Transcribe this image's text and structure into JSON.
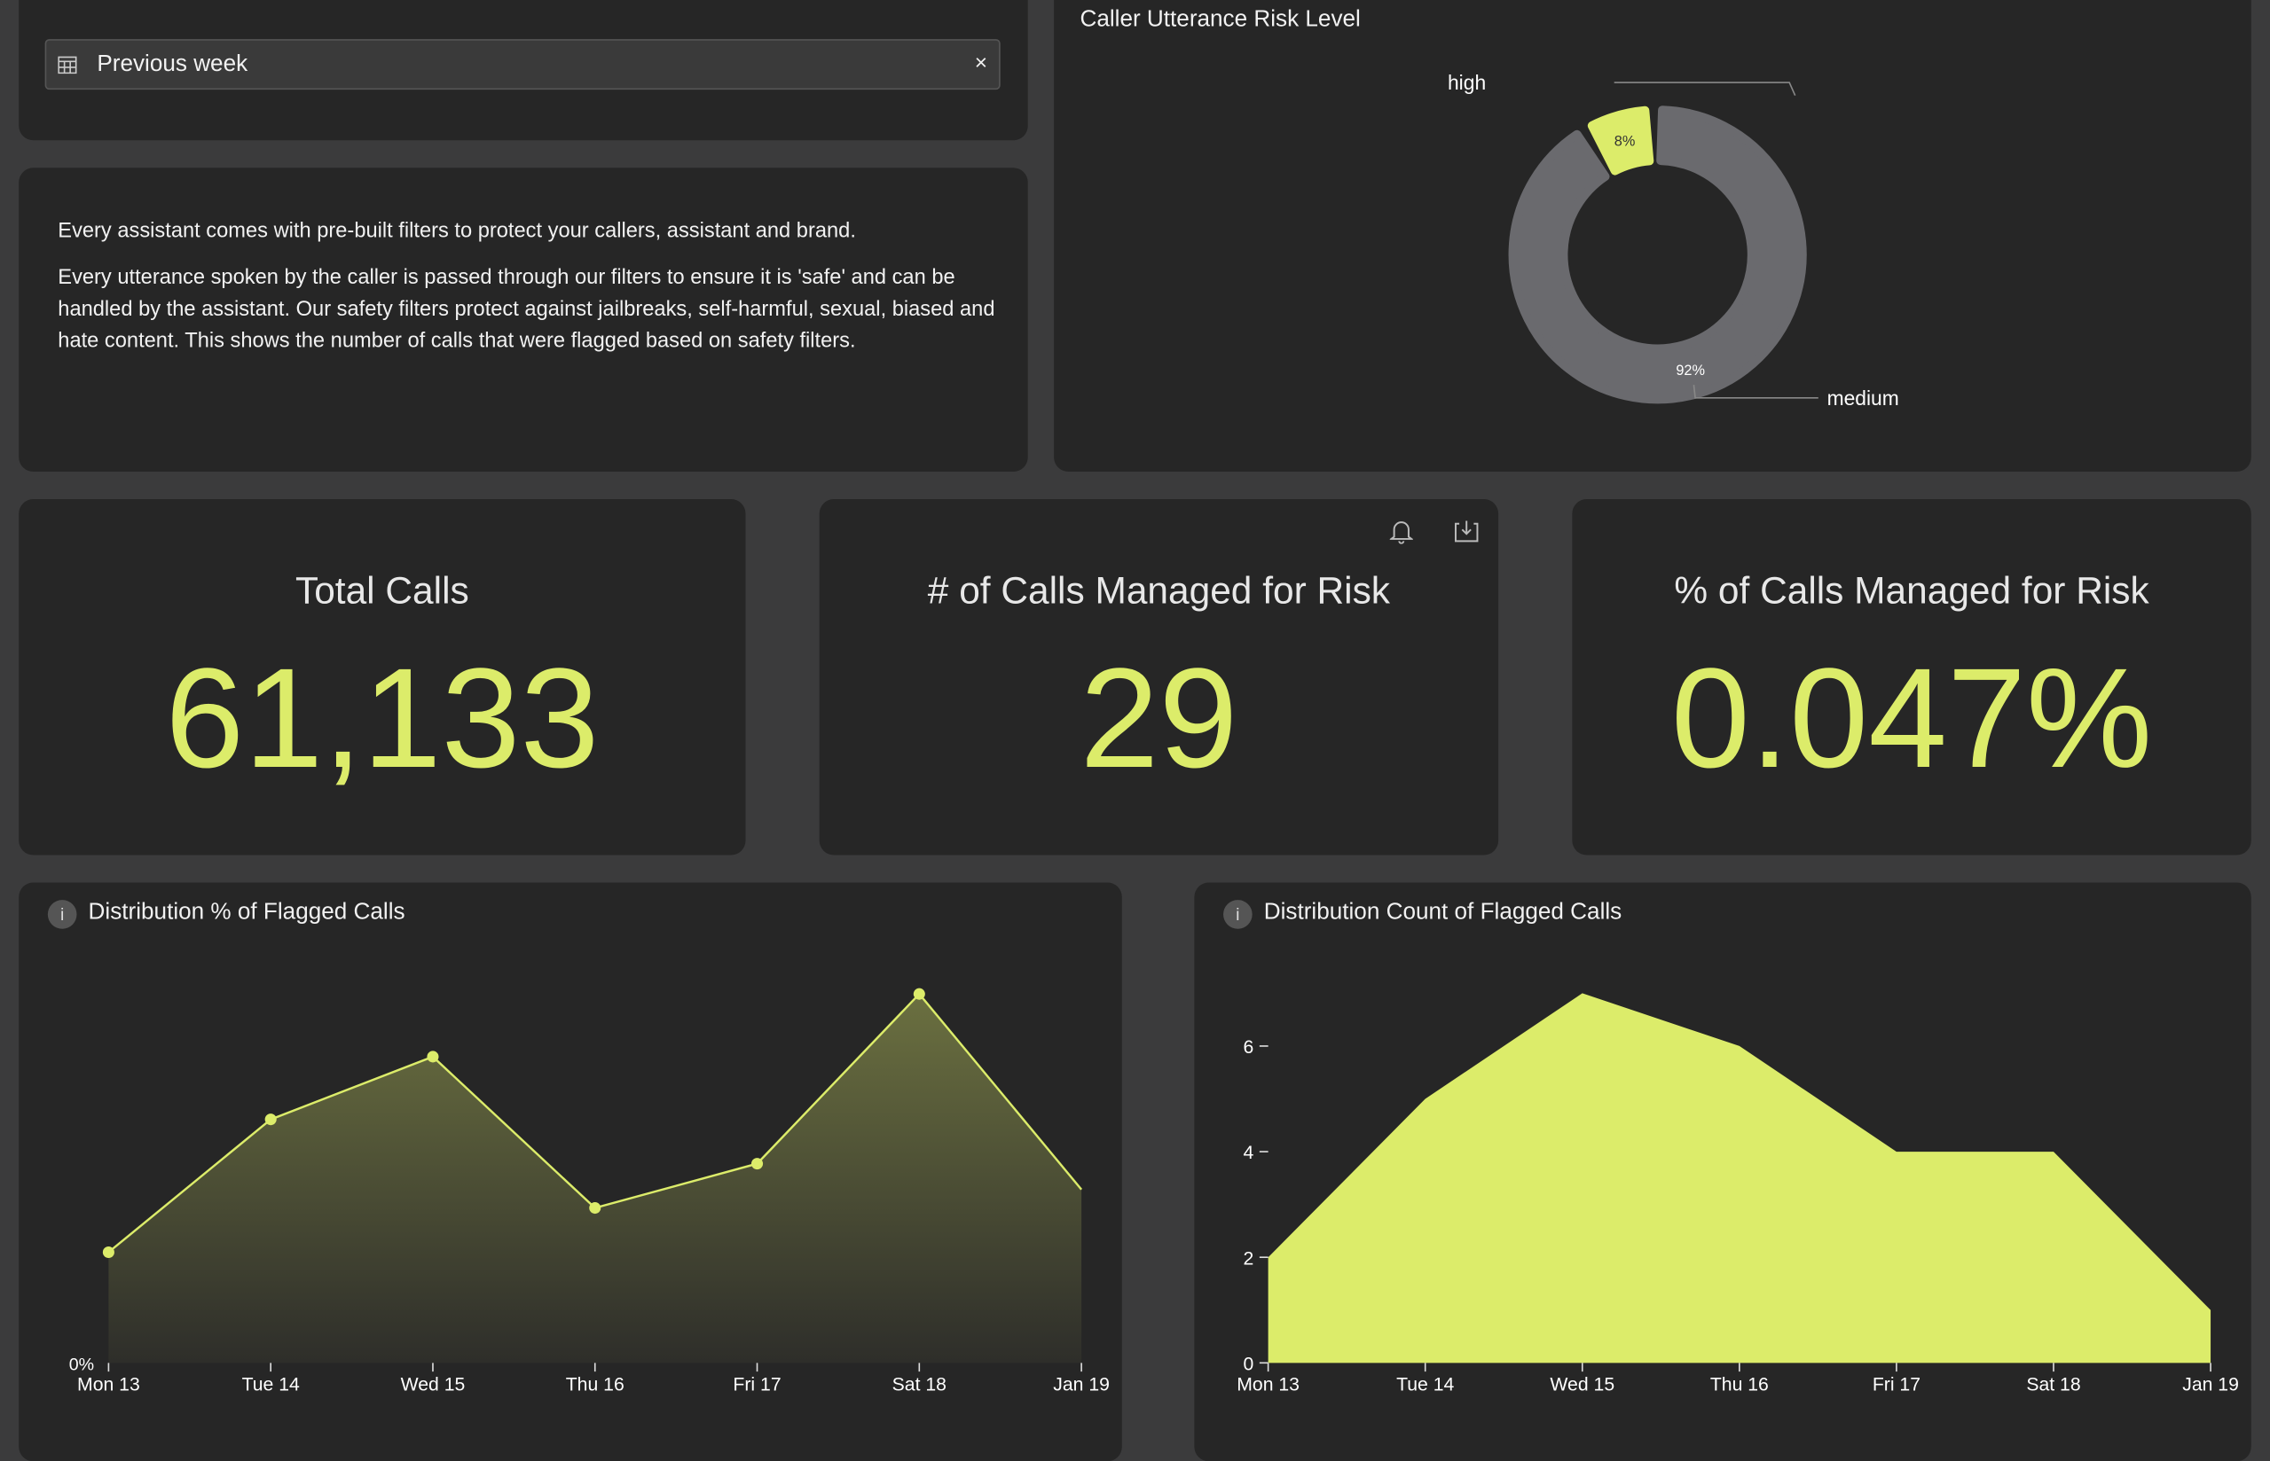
{
  "filter": {
    "label": "Previous week",
    "clear": "×"
  },
  "description": {
    "p1": "Every assistant comes with pre-built filters to protect your callers, assistant and brand.",
    "p2": "Every utterance spoken by the caller is passed through our filters to ensure it is 'safe' and can be handled by the assistant. Our safety filters protect against jailbreaks, self-harmful, sexual, biased and hate content.  This shows the number of calls that were flagged based on safety filters."
  },
  "kpis": [
    {
      "title": "Total Calls",
      "value": "61,133"
    },
    {
      "title": "# of Calls Managed for Risk",
      "value": "29"
    },
    {
      "title": "% of Calls Managed for Risk",
      "value": "0.047%"
    }
  ],
  "colors": {
    "accent": "#dcec6a",
    "gray": "#6a6a6e",
    "card": "#262626"
  },
  "chart_data": [
    {
      "type": "pie",
      "title": "Caller Utterance Risk Level",
      "labels": [
        "high",
        "medium"
      ],
      "values": [
        8,
        92
      ],
      "data_labels": [
        "8%",
        "92%"
      ]
    },
    {
      "type": "area",
      "title": "Distribution % of Flagged Calls",
      "categories": [
        "Mon 13",
        "Tue 14",
        "Wed 15",
        "Thu 16",
        "Fri 17",
        "Sat 18",
        "Jan 19"
      ],
      "values": [
        0.03,
        0.066,
        0.083,
        0.042,
        0.054,
        0.1,
        0.047
      ],
      "yticks": [
        "0%"
      ],
      "ylim": [
        0,
        0.1
      ]
    },
    {
      "type": "area",
      "title": "Distribution Count of Flagged Calls",
      "categories": [
        "Mon 13",
        "Tue 14",
        "Wed 15",
        "Thu 16",
        "Fri 17",
        "Sat 18",
        "Jan 19"
      ],
      "values": [
        2,
        5,
        7,
        6,
        4,
        4,
        1
      ],
      "yticks": [
        "0",
        "2",
        "4",
        "6"
      ],
      "ylim": [
        0,
        7
      ]
    }
  ]
}
